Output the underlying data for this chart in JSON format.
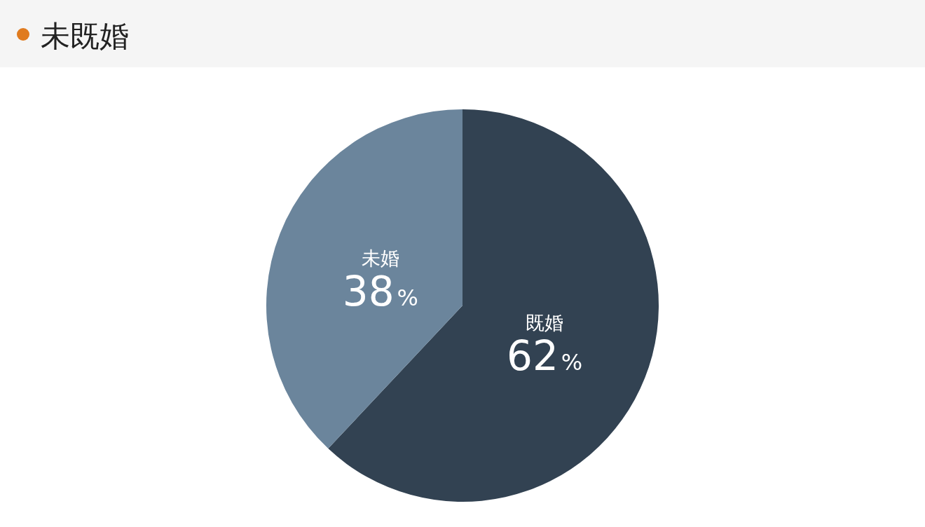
{
  "chart_data": {
    "type": "pie",
    "title": "未既婚",
    "categories": [
      "既婚",
      "未婚"
    ],
    "values": [
      62,
      38
    ],
    "colors": [
      "#324252",
      "#6b859c"
    ],
    "value_labels": [
      "62%",
      "38%"
    ]
  }
}
